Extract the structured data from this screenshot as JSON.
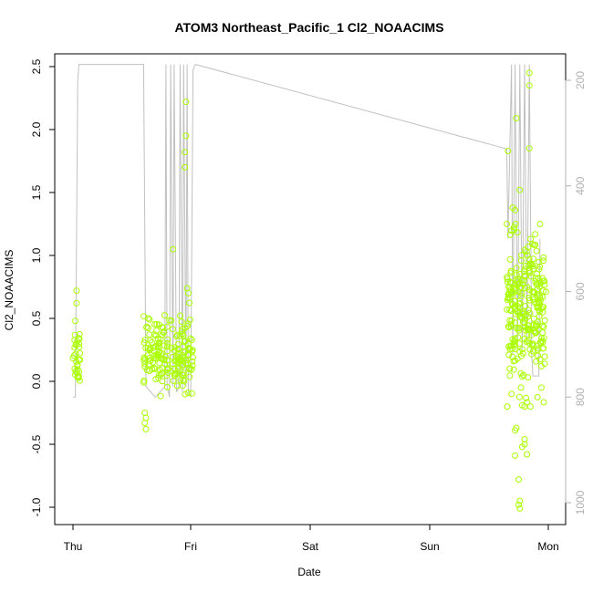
{
  "chart_data": {
    "type": "scatter",
    "title": "ATOM3 Northeast_Pacific_1 Cl2_NOAACIMS",
    "xlabel": "Date",
    "ylabel": "Cl2_NOAACIMS",
    "x_ticks": [
      "Thu",
      "Fri",
      "Sat",
      "Sun",
      "Mon"
    ],
    "x_range_days": [
      -0.05,
      4.15
    ],
    "ylim": [
      -1.1,
      2.6
    ],
    "y_ticks": [
      -1.0,
      -0.5,
      0.0,
      0.5,
      1.0,
      1.5,
      2.0,
      2.5
    ],
    "y_tick_labels": [
      "-1.0",
      "-0.5",
      "0.0",
      "0.5",
      "1.0",
      "1.5",
      "2.0",
      "2.5"
    ],
    "right_axis": {
      "description": "altitude/pressure (inverted, gray)",
      "range": [
        170,
        1040
      ],
      "ticks": [
        200,
        400,
        600,
        800,
        1000
      ],
      "tick_labels": [
        "200",
        "400",
        "600",
        "800",
        "1000"
      ],
      "color": "#b0b0b0"
    },
    "point_color": "#aaff00",
    "line_color": "#c0c0c0",
    "grid": false,
    "point_groups": [
      {
        "x_start": 0.0,
        "x_end": 0.06,
        "y_mean": 0.22,
        "y_sd": 0.12,
        "n": 30,
        "extra": [
          [
            0.03,
            0.72
          ],
          [
            0.03,
            0.62
          ],
          [
            0.02,
            0.48
          ]
        ]
      },
      {
        "x_start": 0.6,
        "x_end": 1.02,
        "y_mean": 0.22,
        "y_sd": 0.14,
        "n": 180,
        "extra": [
          [
            0.62,
            -0.38
          ],
          [
            0.61,
            -0.33
          ],
          [
            0.62,
            -0.29
          ],
          [
            0.61,
            -0.25
          ],
          [
            0.85,
            1.05
          ],
          [
            0.96,
            2.22
          ],
          [
            0.96,
            1.95
          ],
          [
            0.95,
            1.82
          ],
          [
            0.95,
            1.7
          ],
          [
            0.98,
            0.7
          ],
          [
            0.97,
            0.74
          ],
          [
            0.64,
            0.5
          ]
        ]
      },
      {
        "x_start": 3.65,
        "x_end": 3.98,
        "y_mean": 0.55,
        "y_sd": 0.28,
        "n": 260,
        "extra": [
          [
            3.66,
            1.83
          ],
          [
            3.73,
            2.09
          ],
          [
            3.84,
            2.45
          ],
          [
            3.84,
            2.35
          ],
          [
            3.84,
            1.85
          ],
          [
            3.7,
            1.38
          ],
          [
            3.72,
            1.36
          ],
          [
            3.76,
            1.52
          ],
          [
            3.69,
            -0.1
          ],
          [
            3.72,
            -0.39
          ],
          [
            3.73,
            -0.37
          ],
          [
            3.72,
            -0.59
          ],
          [
            3.75,
            -0.78
          ],
          [
            3.76,
            -0.95
          ],
          [
            3.75,
            -0.98
          ],
          [
            3.76,
            -1.01
          ],
          [
            3.8,
            -0.46
          ],
          [
            3.8,
            -0.5
          ],
          [
            3.78,
            -0.52
          ],
          [
            3.82,
            -0.58
          ],
          [
            3.78,
            -0.19
          ],
          [
            3.8,
            -0.2
          ],
          [
            3.77,
            -0.05
          ],
          [
            3.79,
            0.05
          ]
        ]
      }
    ],
    "altitude_path": [
      [
        0.0,
        800
      ],
      [
        0.02,
        800
      ],
      [
        0.04,
        200
      ],
      [
        0.05,
        170
      ],
      [
        0.6,
        170
      ],
      [
        0.62,
        780
      ],
      [
        0.66,
        790
      ],
      [
        0.7,
        800
      ],
      [
        0.78,
        780
      ],
      [
        0.79,
        170
      ],
      [
        0.8,
        780
      ],
      [
        0.82,
        800
      ],
      [
        0.83,
        170
      ],
      [
        0.85,
        780
      ],
      [
        0.86,
        170
      ],
      [
        0.88,
        790
      ],
      [
        0.9,
        780
      ],
      [
        0.91,
        170
      ],
      [
        0.93,
        790
      ],
      [
        0.94,
        170
      ],
      [
        0.96,
        780
      ],
      [
        0.97,
        170
      ],
      [
        0.98,
        790
      ],
      [
        1.0,
        800
      ],
      [
        1.02,
        180
      ],
      [
        1.04,
        170
      ],
      [
        3.65,
        330
      ],
      [
        3.66,
        500
      ],
      [
        3.69,
        170
      ],
      [
        3.7,
        720
      ],
      [
        3.72,
        170
      ],
      [
        3.74,
        700
      ],
      [
        3.76,
        170
      ],
      [
        3.78,
        710
      ],
      [
        3.8,
        170
      ],
      [
        3.82,
        690
      ],
      [
        3.84,
        170
      ],
      [
        3.86,
        720
      ],
      [
        3.87,
        760
      ],
      [
        3.92,
        760
      ],
      [
        3.93,
        500
      ]
    ]
  }
}
